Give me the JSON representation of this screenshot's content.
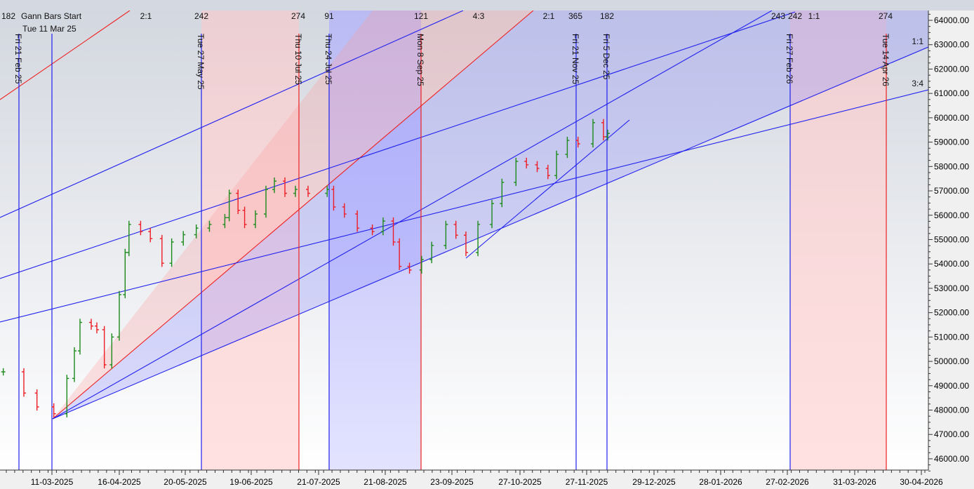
{
  "chart_data": {
    "type": "bar",
    "subtype": "ohlc-price-with-gann-overlays",
    "title": "",
    "xlabel": "",
    "ylabel": "",
    "ylim": [
      45500,
      64400
    ],
    "y_ticks": [
      "46000.00",
      "47000.00",
      "48000.00",
      "49000.00",
      "50000.00",
      "51000.00",
      "52000.00",
      "53000.00",
      "54000.00",
      "55000.00",
      "56000.00",
      "57000.00",
      "58000.00",
      "59000.00",
      "60000.00",
      "61000.00",
      "62000.00",
      "63000.00",
      "64000.00"
    ],
    "x_ticks": [
      "11-03-2025",
      "16-04-2025",
      "20-05-2025",
      "19-06-2025",
      "21-07-2025",
      "21-08-2025",
      "23-09-2025",
      "27-10-2025",
      "27-11-2025",
      "29-12-2025",
      "28-01-2026",
      "27-02-2026",
      "31-03-2026",
      "30-04-2026"
    ],
    "colors": {
      "up": "#1a8a1a",
      "down": "#ee1c24",
      "line_blue": "#2020ee",
      "line_red": "#ee2020",
      "band_pink": "#ffdede",
      "band_blue": "#e0e0ff"
    },
    "gann_start": {
      "title": "Gann Bars Start",
      "date": "Tue 11 Mar 25",
      "price": 47700
    },
    "closes": [
      {
        "d": "2025-02-13",
        "c": 49570
      },
      {
        "d": "2025-02-24",
        "c": 48700
      },
      {
        "d": "2025-03-03",
        "c": 48130
      },
      {
        "d": "2025-03-12",
        "c": 47850
      },
      {
        "d": "2025-03-19",
        "c": 49300
      },
      {
        "d": "2025-03-23",
        "c": 50430
      },
      {
        "d": "2025-03-26",
        "c": 51600
      },
      {
        "d": "2025-04-01",
        "c": 51450
      },
      {
        "d": "2025-04-04",
        "c": 51300
      },
      {
        "d": "2025-04-08",
        "c": 49860
      },
      {
        "d": "2025-04-12",
        "c": 51000
      },
      {
        "d": "2025-04-16",
        "c": 52740
      },
      {
        "d": "2025-04-19",
        "c": 54470
      },
      {
        "d": "2025-04-21",
        "c": 55620
      },
      {
        "d": "2025-04-27",
        "c": 55330
      },
      {
        "d": "2025-05-02",
        "c": 55040
      },
      {
        "d": "2025-05-08",
        "c": 54030
      },
      {
        "d": "2025-05-13",
        "c": 54900
      },
      {
        "d": "2025-05-19",
        "c": 55200
      },
      {
        "d": "2025-05-25",
        "c": 55470
      },
      {
        "d": "2025-05-31",
        "c": 55620
      },
      {
        "d": "2025-06-07",
        "c": 55900
      },
      {
        "d": "2025-06-09",
        "c": 56900
      },
      {
        "d": "2025-06-13",
        "c": 56200
      },
      {
        "d": "2025-06-16",
        "c": 55620
      },
      {
        "d": "2025-06-21",
        "c": 56050
      },
      {
        "d": "2025-06-26",
        "c": 57060
      },
      {
        "d": "2025-06-30",
        "c": 57400
      },
      {
        "d": "2025-07-05",
        "c": 56900
      },
      {
        "d": "2025-07-10",
        "c": 57060
      },
      {
        "d": "2025-07-16",
        "c": 56900
      },
      {
        "d": "2025-07-25",
        "c": 57060
      },
      {
        "d": "2025-07-28",
        "c": 56340
      },
      {
        "d": "2025-08-02",
        "c": 56050
      },
      {
        "d": "2025-08-08",
        "c": 55470
      },
      {
        "d": "2025-08-15",
        "c": 55330
      },
      {
        "d": "2025-08-20",
        "c": 55760
      },
      {
        "d": "2025-08-25",
        "c": 54900
      },
      {
        "d": "2025-08-28",
        "c": 53900
      },
      {
        "d": "2025-09-02",
        "c": 53750
      },
      {
        "d": "2025-09-08",
        "c": 54180
      },
      {
        "d": "2025-09-13",
        "c": 54760
      },
      {
        "d": "2025-09-20",
        "c": 55620
      },
      {
        "d": "2025-09-25",
        "c": 55180
      },
      {
        "d": "2025-09-30",
        "c": 54470
      },
      {
        "d": "2025-10-06",
        "c": 55620
      },
      {
        "d": "2025-10-13",
        "c": 56480
      },
      {
        "d": "2025-10-18",
        "c": 57350
      },
      {
        "d": "2025-10-25",
        "c": 58210
      },
      {
        "d": "2025-10-30",
        "c": 58070
      },
      {
        "d": "2025-11-04",
        "c": 57920
      },
      {
        "d": "2025-11-09",
        "c": 57630
      },
      {
        "d": "2025-11-13",
        "c": 58500
      },
      {
        "d": "2025-11-18",
        "c": 59070
      },
      {
        "d": "2025-11-23",
        "c": 58930
      },
      {
        "d": "2025-11-30",
        "c": 59800
      },
      {
        "d": "2025-12-05",
        "c": 59220
      },
      {
        "d": "2025-12-07",
        "c": 59360
      }
    ],
    "time_lines": [
      {
        "label": "Fri 21 Feb 25",
        "color": "blue"
      },
      {
        "label": "",
        "color": "blue"
      },
      {
        "label": "Tue 27 May 25",
        "color": "blue"
      },
      {
        "label": "Thu 10 Jul 25",
        "color": "red"
      },
      {
        "label": "Thu 24 Jul 25",
        "color": "blue"
      },
      {
        "label": "Mon 8 Sep 25",
        "color": "red"
      },
      {
        "label": "Fri 21 Nov 25",
        "color": "blue"
      },
      {
        "label": "Fri 5 Dec 25",
        "color": "blue"
      },
      {
        "label": "Fri 27 Feb 26",
        "color": "blue"
      },
      {
        "label": "Tue 14 Apr 26",
        "color": "red"
      }
    ],
    "top_labels": [
      "182",
      "2:1",
      "242",
      "274",
      "91",
      "121",
      "4:3",
      "2:1",
      "365",
      "182",
      "243",
      "242",
      "1:1",
      "274"
    ],
    "right_labels": [
      "1:1",
      "3:4"
    ]
  }
}
